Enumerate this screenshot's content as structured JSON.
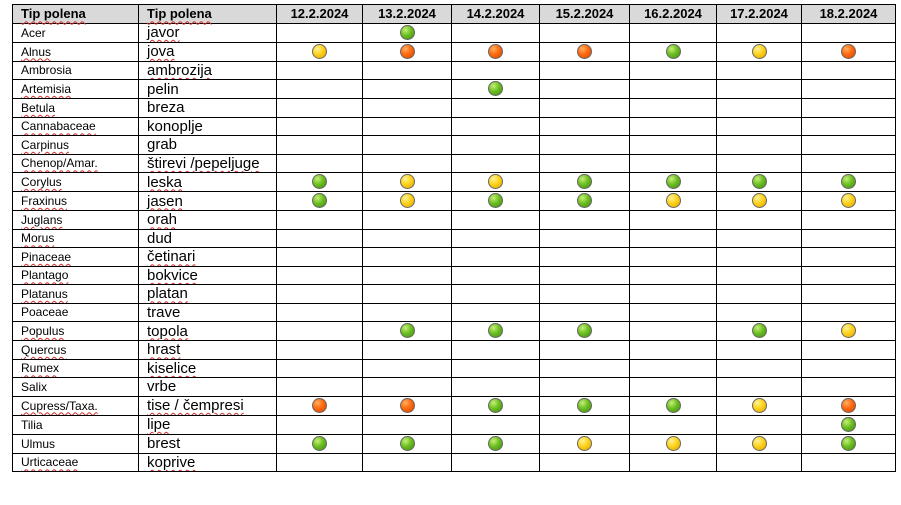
{
  "table": {
    "headers": {
      "latin": "Tip polena",
      "local": "Tip polena",
      "dates": [
        "12.2.2024",
        "13.2.2024",
        "14.2.2024",
        "15.2.2024",
        "16.2.2024",
        "17.2.2024",
        "18.2.2024"
      ]
    },
    "level_colors": {
      "green": "#6cbf21",
      "yellow": "#ffd21a",
      "orange": "#ff6a10"
    },
    "rows": [
      {
        "latin": "Acer",
        "local": "javor",
        "values": [
          "",
          "green",
          "",
          "",
          "",
          "",
          ""
        ]
      },
      {
        "latin": "Alnus",
        "local": "jova",
        "values": [
          "yellow",
          "orange",
          "orange",
          "orange",
          "green",
          "yellow",
          "orange"
        ]
      },
      {
        "latin": "Ambrosia",
        "local": "ambrozija",
        "values": [
          "",
          "",
          "",
          "",
          "",
          "",
          ""
        ]
      },
      {
        "latin": "Artemisia",
        "local": "pelin",
        "values": [
          "",
          "",
          "green",
          "",
          "",
          "",
          ""
        ]
      },
      {
        "latin": "Betula",
        "local": "breza",
        "values": [
          "",
          "",
          "",
          "",
          "",
          "",
          ""
        ]
      },
      {
        "latin": "Cannabaceae",
        "local": "konoplje",
        "values": [
          "",
          "",
          "",
          "",
          "",
          "",
          ""
        ]
      },
      {
        "latin": "Carpinus",
        "local": "grab",
        "values": [
          "",
          "",
          "",
          "",
          "",
          "",
          ""
        ]
      },
      {
        "latin": "Chenop/Amar.",
        "local": "štirevi /pepeljuge",
        "values": [
          "",
          "",
          "",
          "",
          "",
          "",
          ""
        ]
      },
      {
        "latin": "Corylus",
        "local": "leska",
        "values": [
          "green",
          "yellow",
          "yellow",
          "green",
          "green",
          "green",
          "green"
        ]
      },
      {
        "latin": "Fraxinus",
        "local": "jasen",
        "values": [
          "green",
          "yellow",
          "green",
          "green",
          "yellow",
          "yellow",
          "yellow"
        ]
      },
      {
        "latin": "Juglans",
        "local": "orah",
        "values": [
          "",
          "",
          "",
          "",
          "",
          "",
          ""
        ]
      },
      {
        "latin": "Morus",
        "local": "dud",
        "values": [
          "",
          "",
          "",
          "",
          "",
          "",
          ""
        ]
      },
      {
        "latin": "Pinaceae",
        "local": "četinari",
        "values": [
          "",
          "",
          "",
          "",
          "",
          "",
          ""
        ]
      },
      {
        "latin": "Plantago",
        "local": "bokvice",
        "values": [
          "",
          "",
          "",
          "",
          "",
          "",
          ""
        ]
      },
      {
        "latin": "Platanus",
        "local": "platan",
        "values": [
          "",
          "",
          "",
          "",
          "",
          "",
          ""
        ]
      },
      {
        "latin": "Poaceae",
        "local": "trave",
        "values": [
          "",
          "",
          "",
          "",
          "",
          "",
          ""
        ]
      },
      {
        "latin": "Populus",
        "local": "topola",
        "values": [
          "",
          "green",
          "green",
          "green",
          "",
          "green",
          "yellow"
        ]
      },
      {
        "latin": "Quercus",
        "local": "hrast",
        "values": [
          "",
          "",
          "",
          "",
          "",
          "",
          ""
        ]
      },
      {
        "latin": "Rumex",
        "local": "kiselice",
        "values": [
          "",
          "",
          "",
          "",
          "",
          "",
          ""
        ]
      },
      {
        "latin": "Salix",
        "local": "vrbe",
        "values": [
          "",
          "",
          "",
          "",
          "",
          "",
          ""
        ]
      },
      {
        "latin": "Cupress/Taxa.",
        "local": "tise / čempresi",
        "values": [
          "orange",
          "orange",
          "green",
          "green",
          "green",
          "yellow",
          "orange"
        ]
      },
      {
        "latin": "Tilia",
        "local": "lipe",
        "values": [
          "",
          "",
          "",
          "",
          "",
          "",
          "green"
        ]
      },
      {
        "latin": "Ulmus",
        "local": "brest",
        "values": [
          "green",
          "green",
          "green",
          "yellow",
          "yellow",
          "yellow",
          "green"
        ]
      },
      {
        "latin": "Urticaceae",
        "local": "koprive",
        "values": [
          "",
          "",
          "",
          "",
          "",
          "",
          ""
        ]
      }
    ]
  }
}
